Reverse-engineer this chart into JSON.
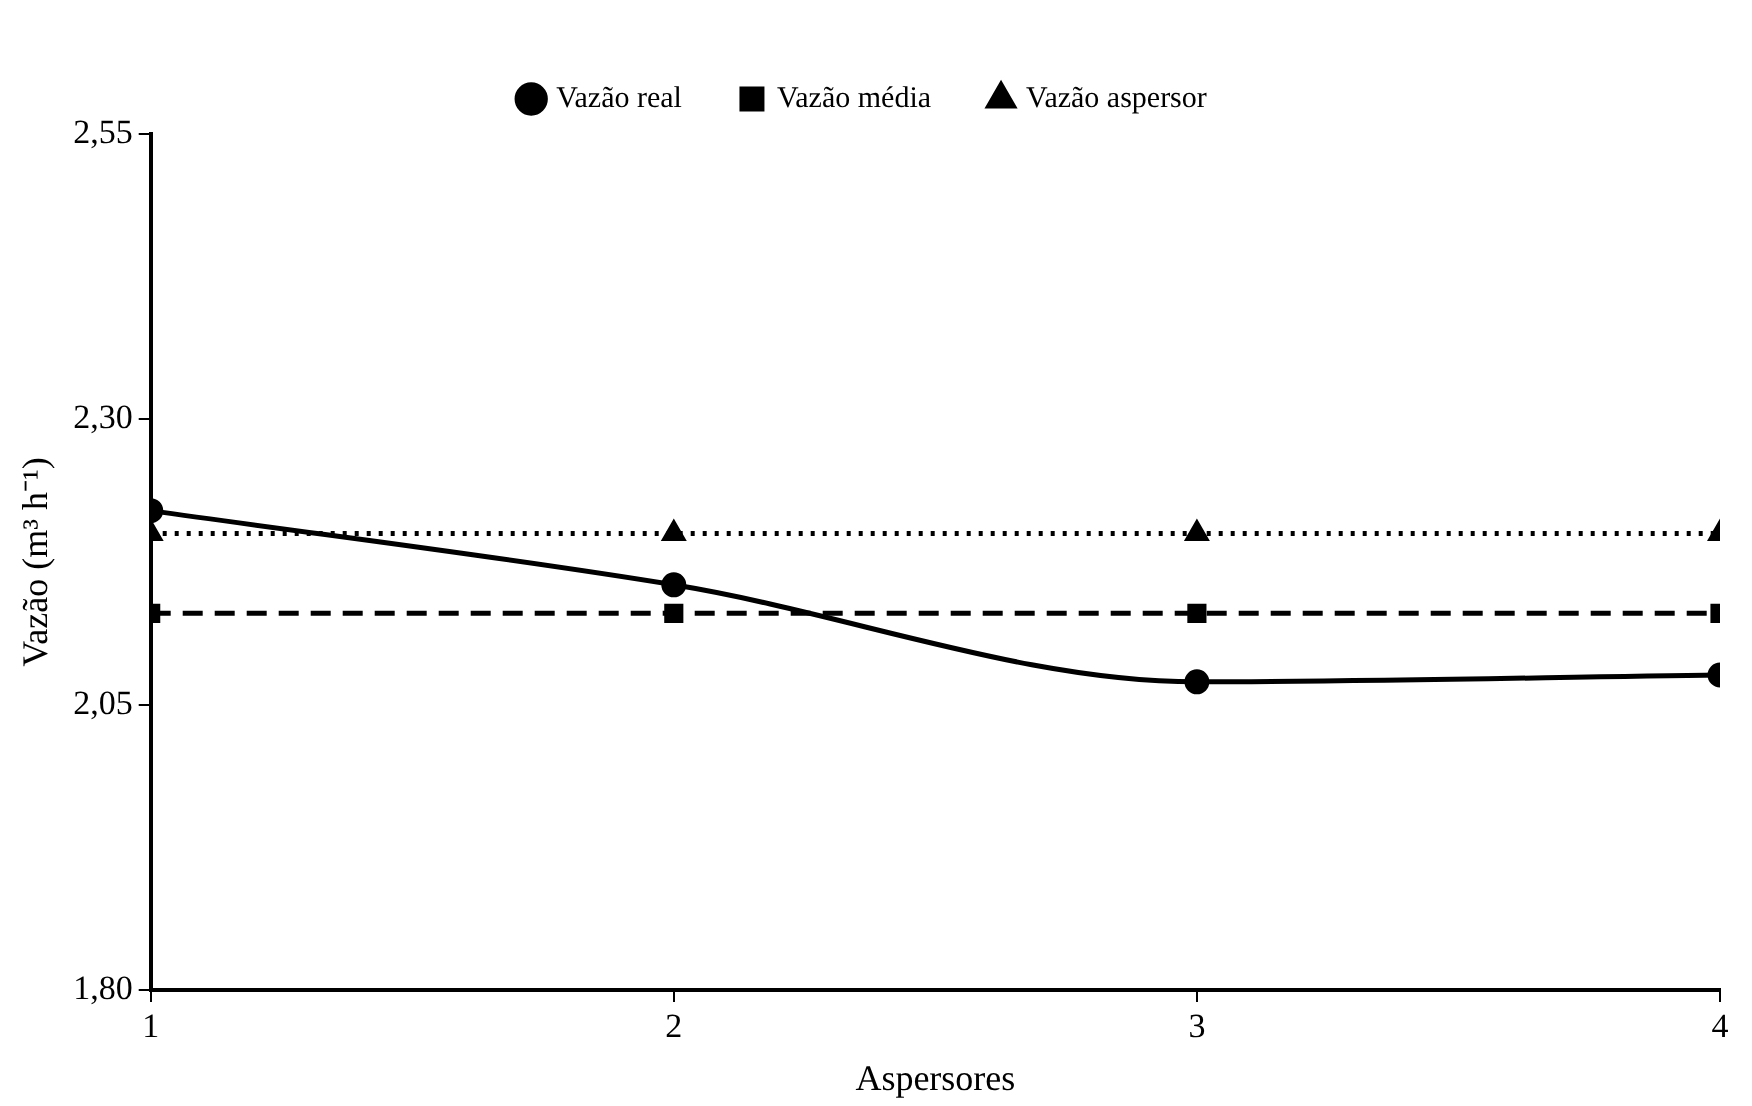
{
  "chart_data": {
    "type": "line",
    "xlabel": "Aspersores",
    "ylabel": "Vazão (m³ h⁻¹)",
    "x": [
      1,
      2,
      3,
      4
    ],
    "xlim": [
      1,
      4
    ],
    "xticks": [
      1,
      2,
      3,
      4
    ],
    "ylim": [
      1.8,
      2.55
    ],
    "yticks": [
      {
        "value": 1.8,
        "label": "1,80"
      },
      {
        "value": 2.05,
        "label": "2,05"
      },
      {
        "value": 2.3,
        "label": "2,30"
      },
      {
        "value": 2.55,
        "label": "2,55"
      }
    ],
    "grid": false,
    "legend": "top",
    "series": [
      {
        "name": "Vazão real",
        "color": "#000000",
        "marker": "circle",
        "line_style": "solid",
        "values": [
          2.22,
          2.155,
          2.07,
          2.076
        ]
      },
      {
        "name": "Vazão média",
        "color": "#000000",
        "marker": "square",
        "line_style": "dashed",
        "values": [
          2.13,
          2.13,
          2.13,
          2.13
        ]
      },
      {
        "name": "Vazão aspersor",
        "color": "#000000",
        "marker": "triangle",
        "line_style": "dotted",
        "values": [
          2.2,
          2.2,
          2.2,
          2.2
        ]
      }
    ]
  }
}
